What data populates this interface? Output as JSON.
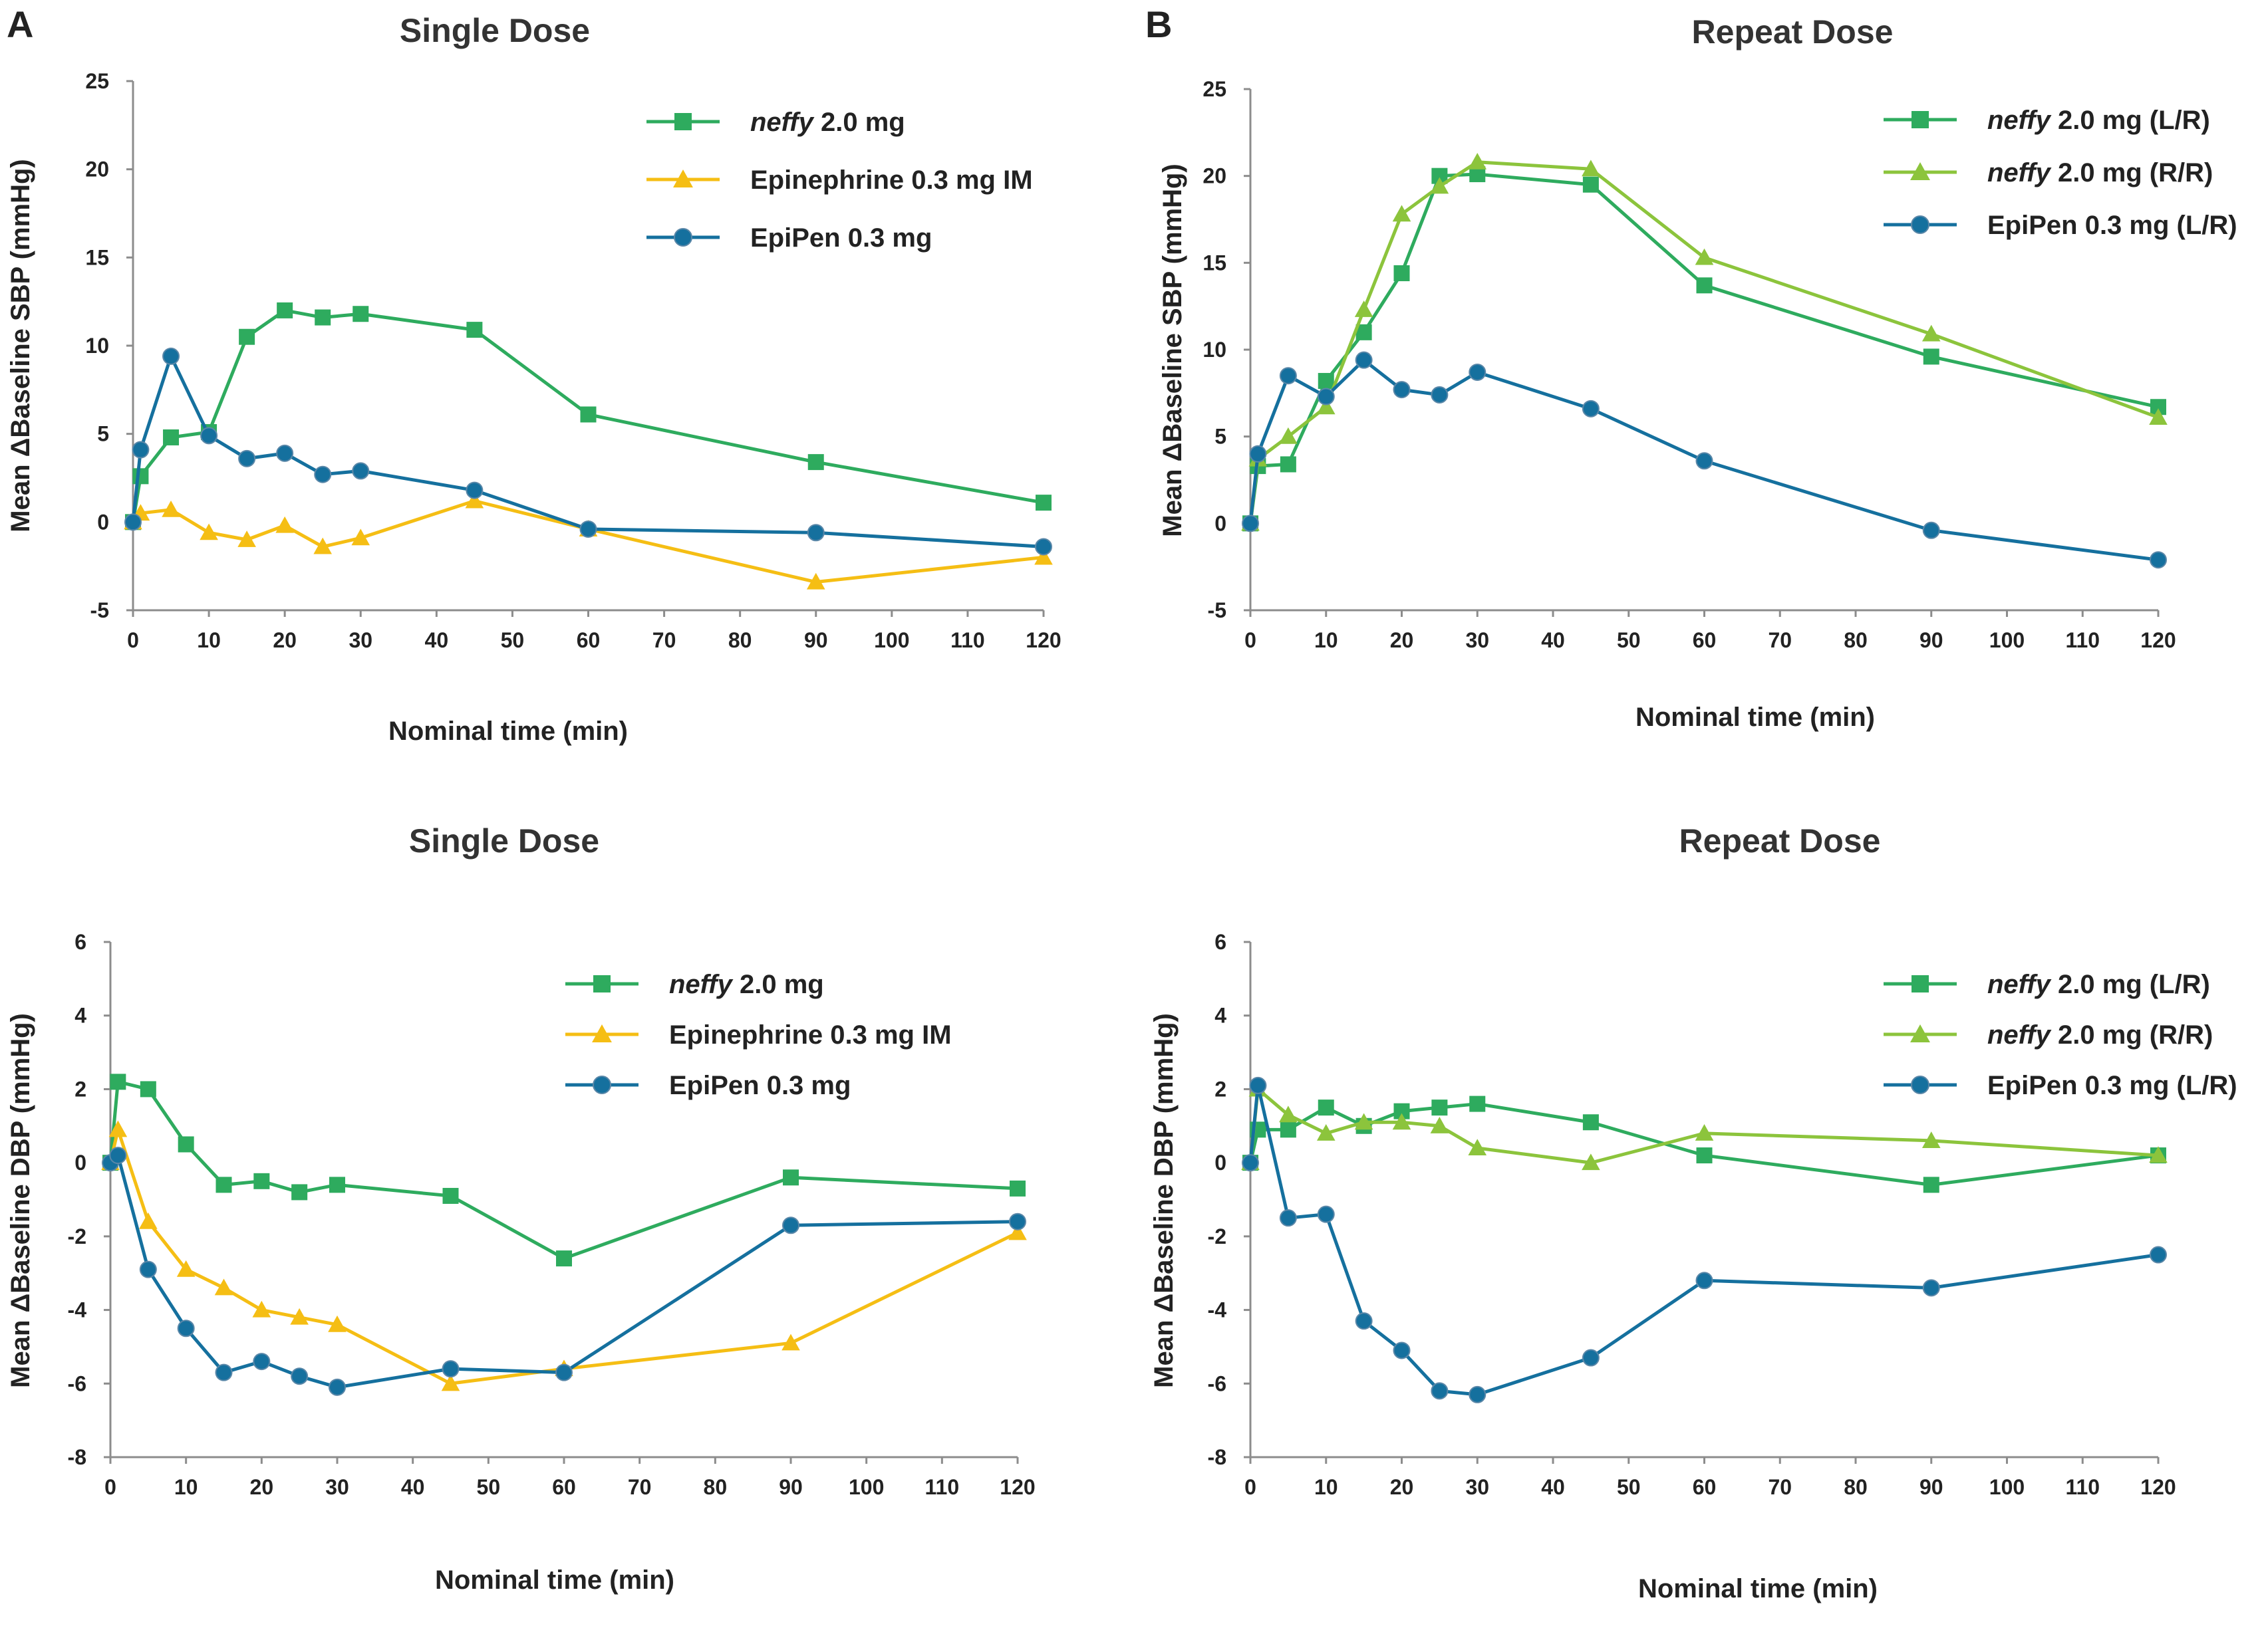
{
  "panel_letters": [
    "A",
    "B"
  ],
  "colors": {
    "neffy": "#2EAB5E",
    "neffy_rr": "#8CC43C",
    "epinephrine_im": "#F5BE14",
    "epipen": "#15709E"
  },
  "chart_data": [
    {
      "type": "line",
      "panel": "A",
      "title": "Single Dose",
      "xlabel": "Nominal time (min)",
      "ylabel": "Mean ΔBaseline SBP (mmHg)",
      "xlim": [
        0,
        120
      ],
      "ylim": [
        -5,
        25
      ],
      "xticks": [
        0,
        10,
        20,
        30,
        40,
        50,
        60,
        70,
        80,
        90,
        100,
        110,
        120
      ],
      "yticks": [
        -5,
        0,
        5,
        10,
        15,
        20,
        25
      ],
      "legend_position": "top-right",
      "series": [
        {
          "name_italic": "neffy",
          "name": "2.0 mg",
          "color": "#2EAB5E",
          "marker": "square",
          "x": [
            0,
            1,
            5,
            10,
            15,
            20,
            25,
            30,
            45,
            60,
            90,
            120
          ],
          "y": [
            0,
            2.6,
            4.8,
            5.1,
            10.5,
            12.0,
            11.6,
            11.8,
            10.9,
            6.1,
            3.4,
            1.1
          ]
        },
        {
          "name": "Epinephrine 0.3 mg IM",
          "color": "#F5BE14",
          "marker": "triangle",
          "x": [
            0,
            1,
            5,
            10,
            15,
            20,
            25,
            30,
            45,
            60,
            90,
            120
          ],
          "y": [
            0,
            0.5,
            0.7,
            -0.6,
            -1.0,
            -0.2,
            -1.4,
            -0.9,
            1.2,
            -0.4,
            -3.4,
            -2.0
          ]
        },
        {
          "name": "EpiPen 0.3 mg",
          "color": "#15709E",
          "marker": "circle",
          "x": [
            0,
            1,
            5,
            10,
            15,
            20,
            25,
            30,
            45,
            60,
            90,
            120
          ],
          "y": [
            0,
            4.1,
            9.4,
            4.9,
            3.6,
            3.9,
            2.7,
            2.9,
            1.8,
            -0.4,
            -0.6,
            -1.4
          ]
        }
      ]
    },
    {
      "type": "line",
      "panel": "B",
      "title": "Repeat Dose",
      "xlabel": "Nominal time (min)",
      "ylabel": "Mean ΔBaseline SBP (mmHg)",
      "xlim": [
        0,
        120
      ],
      "ylim": [
        -5,
        25
      ],
      "xticks": [
        0,
        10,
        20,
        30,
        40,
        50,
        60,
        70,
        80,
        90,
        100,
        110,
        120
      ],
      "yticks": [
        -5,
        0,
        5,
        10,
        15,
        20,
        25
      ],
      "legend_position": "top-right",
      "series": [
        {
          "name_italic": "neffy",
          "name": "2.0 mg (L/R)",
          "color": "#2EAB5E",
          "marker": "square",
          "x": [
            0,
            1,
            5,
            10,
            15,
            20,
            25,
            30,
            45,
            60,
            90,
            120
          ],
          "y": [
            0,
            3.3,
            3.4,
            8.2,
            11.0,
            14.4,
            20.0,
            20.1,
            19.5,
            13.7,
            9.6,
            6.7
          ]
        },
        {
          "name_italic": "neffy",
          "name": "2.0 mg (R/R)",
          "color": "#8CC43C",
          "marker": "triangle",
          "x": [
            0,
            1,
            5,
            10,
            15,
            20,
            25,
            30,
            45,
            60,
            90,
            120
          ],
          "y": [
            0,
            3.7,
            5.0,
            6.7,
            12.3,
            17.8,
            19.4,
            20.8,
            20.4,
            15.3,
            10.9,
            6.1
          ]
        },
        {
          "name": "EpiPen 0.3 mg (L/R)",
          "color": "#15709E",
          "marker": "circle",
          "x": [
            0,
            1,
            5,
            10,
            15,
            20,
            25,
            30,
            45,
            60,
            90,
            120
          ],
          "y": [
            0,
            4.0,
            8.5,
            7.3,
            9.4,
            7.7,
            7.4,
            8.7,
            6.6,
            3.6,
            -0.4,
            -2.1
          ]
        }
      ]
    },
    {
      "type": "line",
      "panel": "A",
      "title": "Single Dose",
      "xlabel": "Nominal time (min)",
      "ylabel": "Mean ΔBaseline DBP (mmHg)",
      "xlim": [
        0,
        120
      ],
      "ylim": [
        -8,
        6
      ],
      "xticks": [
        0,
        10,
        20,
        30,
        40,
        50,
        60,
        70,
        80,
        90,
        100,
        110,
        120
      ],
      "yticks": [
        -8,
        -6,
        -4,
        -2,
        0,
        2,
        4,
        6
      ],
      "legend_position": "top-right",
      "series": [
        {
          "name_italic": "neffy",
          "name": "2.0 mg",
          "color": "#2EAB5E",
          "marker": "square",
          "x": [
            0,
            1,
            5,
            10,
            15,
            20,
            25,
            30,
            45,
            60,
            90,
            120
          ],
          "y": [
            0,
            2.2,
            2.0,
            0.5,
            -0.6,
            -0.5,
            -0.8,
            -0.6,
            -0.9,
            -2.6,
            -0.4,
            -0.7
          ]
        },
        {
          "name": "Epinephrine 0.3 mg IM",
          "color": "#F5BE14",
          "marker": "triangle",
          "x": [
            0,
            1,
            5,
            10,
            15,
            20,
            25,
            30,
            45,
            60,
            90,
            120
          ],
          "y": [
            0,
            0.9,
            -1.6,
            -2.9,
            -3.4,
            -4.0,
            -4.2,
            -4.4,
            -6.0,
            -5.6,
            -4.9,
            -1.9
          ]
        },
        {
          "name": "EpiPen 0.3 mg",
          "color": "#15709E",
          "marker": "circle",
          "x": [
            0,
            1,
            5,
            10,
            15,
            20,
            25,
            30,
            45,
            60,
            90,
            120
          ],
          "y": [
            0,
            0.2,
            -2.9,
            -4.5,
            -5.7,
            -5.4,
            -5.8,
            -6.1,
            -5.6,
            -5.7,
            -1.7,
            -1.6
          ]
        }
      ]
    },
    {
      "type": "line",
      "panel": "B",
      "title": "Repeat Dose",
      "xlabel": "Nominal time (min)",
      "ylabel": "Mean ΔBaseline DBP (mmHg)",
      "xlim": [
        0,
        120
      ],
      "ylim": [
        -8,
        6
      ],
      "xticks": [
        0,
        10,
        20,
        30,
        40,
        50,
        60,
        70,
        80,
        90,
        100,
        110,
        120
      ],
      "yticks": [
        -8,
        -6,
        -4,
        -2,
        0,
        2,
        4,
        6
      ],
      "legend_position": "top-right",
      "series": [
        {
          "name_italic": "neffy",
          "name": "2.0 mg (L/R)",
          "color": "#2EAB5E",
          "marker": "square",
          "x": [
            0,
            1,
            5,
            10,
            15,
            20,
            25,
            30,
            45,
            60,
            90,
            120
          ],
          "y": [
            0,
            0.9,
            0.9,
            1.5,
            1.0,
            1.4,
            1.5,
            1.6,
            1.1,
            0.2,
            -0.6,
            0.2
          ]
        },
        {
          "name_italic": "neffy",
          "name": "2.0 mg (R/R)",
          "color": "#8CC43C",
          "marker": "triangle",
          "x": [
            0,
            1,
            5,
            10,
            15,
            20,
            25,
            30,
            45,
            60,
            90,
            120
          ],
          "y": [
            0,
            2.0,
            1.3,
            0.8,
            1.1,
            1.1,
            1.0,
            0.4,
            0.0,
            0.8,
            0.6,
            0.2
          ]
        },
        {
          "name": "EpiPen 0.3 mg (L/R)",
          "color": "#15709E",
          "marker": "circle",
          "x": [
            0,
            1,
            5,
            10,
            15,
            20,
            25,
            30,
            45,
            60,
            90,
            120
          ],
          "y": [
            0,
            2.1,
            -1.5,
            -1.4,
            -4.3,
            -5.1,
            -6.2,
            -6.3,
            -5.3,
            -3.2,
            -3.4,
            -2.5
          ]
        }
      ]
    }
  ]
}
